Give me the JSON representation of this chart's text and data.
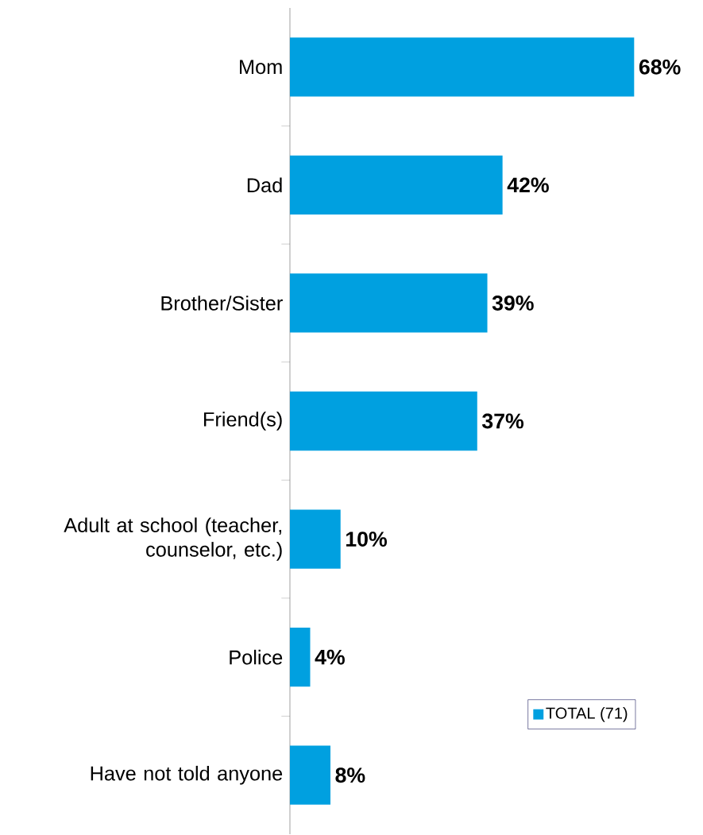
{
  "chart_data": {
    "type": "bar",
    "orientation": "horizontal",
    "legend": "bottom right",
    "categories": [
      "Mom",
      "Dad",
      "Brother/Sister",
      "Friend(s)",
      "Adult at school (teacher, counselor, etc.)",
      "Police",
      "Have not told anyone"
    ],
    "series": [
      {
        "name": "TOTAL (71)",
        "color": "#00a0e0",
        "values": [
          68,
          42,
          39,
          37,
          10,
          4,
          8
        ],
        "value_labels": [
          "68%",
          "42%",
          "39%",
          "37%",
          "10%",
          "4%",
          "8%"
        ]
      }
    ]
  }
}
